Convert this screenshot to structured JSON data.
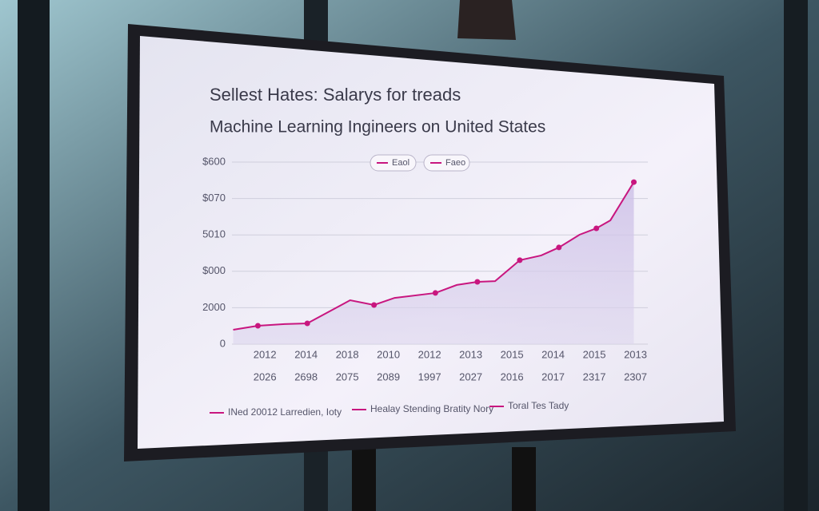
{
  "chart_data": {
    "type": "line",
    "title": "Sellest Hates: Salarys for treads",
    "subtitle": "Machine Learning Ingineers on United States",
    "legend": [
      "Eaol",
      "Faeo"
    ],
    "footer_legend": [
      "INed 20012 Larredien, Ioty",
      "Healay Stending Bratity Nory",
      "Toral Tes Tady"
    ],
    "xlim": [
      0.2,
      10.3
    ],
    "xticks": [
      {
        "value": 1,
        "label": "2012"
      },
      {
        "value": 2,
        "label": "2014"
      },
      {
        "value": 3,
        "label": "2018"
      },
      {
        "value": 4,
        "label": "2010"
      },
      {
        "value": 5,
        "label": "2012"
      },
      {
        "value": 6,
        "label": "2013"
      },
      {
        "value": 7,
        "label": "2015"
      },
      {
        "value": 8,
        "label": "2014"
      },
      {
        "value": 9,
        "label": "2015"
      },
      {
        "value": 10,
        "label": "2013"
      }
    ],
    "xtick_sublabels": [
      "2026",
      "2698",
      "2075",
      "2089",
      "1997",
      "2027",
      "2016",
      "2017",
      "2317",
      "2307"
    ],
    "ylim": [
      0,
      10000
    ],
    "yticks": [
      0,
      2000,
      {
        "value": 4000,
        "label": "$000"
      },
      {
        "value": 6000,
        "label": "5010"
      },
      {
        "value": 8000,
        "label": "$070"
      },
      {
        "value": 10000,
        "label": "$600"
      }
    ],
    "grid": true,
    "series": [
      {
        "color": "#c8167f",
        "x": [
          0.23,
          0.83,
          1.48,
          2.03,
          3.07,
          3.65,
          4.15,
          5.14,
          5.66,
          6.16,
          6.59,
          7.19,
          7.71,
          8.14,
          8.64,
          9.05,
          9.39,
          9.96
        ],
        "values": [
          790,
          1010,
          1100,
          1140,
          2410,
          2150,
          2540,
          2810,
          3250,
          3420,
          3460,
          4610,
          4870,
          5310,
          6010,
          6360,
          6800,
          8900
        ]
      }
    ]
  }
}
